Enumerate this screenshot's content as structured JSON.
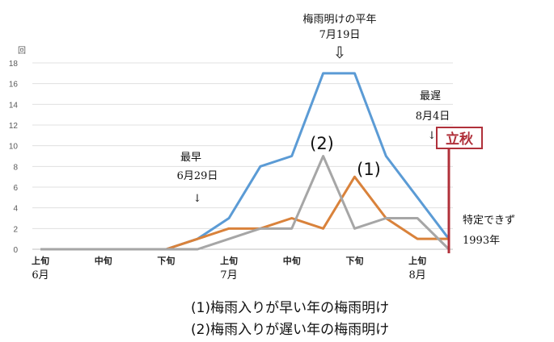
{
  "chart_data": {
    "type": "line",
    "y_unit_label": "回",
    "ylim": [
      0,
      18
    ],
    "yticks": [
      0,
      2,
      4,
      6,
      8,
      10,
      12,
      14,
      16,
      18
    ],
    "x": [
      0,
      1,
      2,
      3,
      4,
      5,
      6,
      7,
      8,
      9,
      10,
      11,
      12,
      13
    ],
    "x_tick_labels": [
      {
        "pos": 0,
        "label": "上旬"
      },
      {
        "pos": 2,
        "label": "中旬"
      },
      {
        "pos": 4,
        "label": "下旬"
      },
      {
        "pos": 6,
        "label": "上旬"
      },
      {
        "pos": 8,
        "label": "中旬"
      },
      {
        "pos": 10,
        "label": "下旬"
      },
      {
        "pos": 12,
        "label": "上旬"
      }
    ],
    "month_labels": [
      {
        "pos": 0,
        "label": "6月"
      },
      {
        "pos": 6,
        "label": "7月"
      },
      {
        "pos": 12,
        "label": "8月"
      }
    ],
    "series": [
      {
        "id": "all",
        "color": "#5b9bd5",
        "values": [
          0,
          0,
          0,
          0,
          0,
          1,
          3,
          8,
          9,
          17,
          17,
          9,
          5,
          1
        ]
      },
      {
        "id": "early",
        "name": "(1)",
        "color": "#d9823b",
        "values": [
          0,
          0,
          0,
          0,
          0,
          1,
          2,
          2,
          3,
          2,
          7,
          3,
          1,
          1
        ]
      },
      {
        "id": "late",
        "name": "(2)",
        "color": "#a6a6a6",
        "values": [
          0,
          0,
          0,
          0,
          0,
          0,
          1,
          2,
          2,
          9,
          2,
          3,
          3,
          0
        ]
      }
    ],
    "annotations": {
      "normal": {
        "line1": "梅雨明けの平年",
        "line2": "7月19日",
        "arrow": "⇩",
        "x": 9.5
      },
      "earliest": {
        "line1": "最早",
        "line2": "6月29日",
        "arrow": "↓",
        "x": 5
      },
      "latest": {
        "line1": "最遅",
        "line2": "8月4日",
        "arrow": "↓",
        "x": 12.7
      },
      "undetermined": {
        "line1": "特定できず",
        "line2": "1993年"
      }
    },
    "risshu": {
      "label": "立秋",
      "x": 13,
      "color": "#b0303a"
    },
    "legend": [
      "(1)梅雨入りが早い年の梅雨明け",
      "(2)梅雨入りが遅い年の梅雨明け"
    ]
  }
}
